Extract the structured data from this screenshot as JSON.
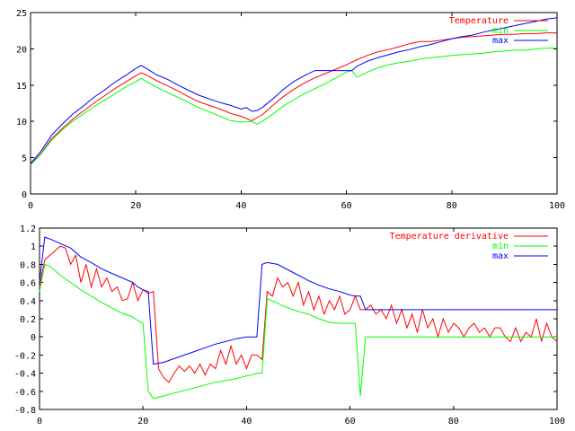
{
  "chart_data": [
    {
      "type": "line",
      "title": "",
      "xlabel": "",
      "ylabel": "",
      "xlim": [
        0,
        100
      ],
      "ylim": [
        0,
        25
      ],
      "xticks": [
        0,
        20,
        40,
        60,
        80,
        100
      ],
      "yticks": [
        0,
        5,
        10,
        15,
        20,
        25
      ],
      "grid": false,
      "legend": "top-right",
      "series": [
        {
          "name": "Temperature",
          "color": "#ff0000",
          "x": [
            0,
            2,
            4,
            6,
            8,
            10,
            12,
            14,
            16,
            18,
            20,
            21,
            22,
            24,
            26,
            28,
            30,
            32,
            34,
            36,
            38,
            40,
            42,
            44,
            46,
            48,
            50,
            52,
            54,
            56,
            58,
            60,
            62,
            64,
            66,
            68,
            70,
            72,
            74,
            76,
            78,
            80,
            82,
            84,
            86,
            88,
            90,
            92,
            94,
            96,
            98,
            100
          ],
          "y": [
            4.1,
            5.6,
            7.6,
            9.0,
            10.3,
            11.4,
            12.5,
            13.5,
            14.5,
            15.4,
            16.3,
            16.7,
            16.4,
            15.6,
            14.9,
            14.2,
            13.4,
            12.7,
            12.2,
            11.7,
            11.1,
            10.7,
            10.1,
            10.9,
            12.2,
            13.4,
            14.4,
            15.3,
            16.0,
            16.6,
            17.2,
            17.8,
            18.5,
            19.1,
            19.6,
            19.9,
            20.3,
            20.7,
            21.0,
            21.0,
            21.2,
            21.4,
            21.6,
            21.7,
            21.8,
            21.9,
            22.0,
            22.0,
            22.1,
            22.1,
            22.2,
            22.2
          ]
        },
        {
          "name": "min",
          "color": "#00ff00",
          "x": [
            0,
            2,
            4,
            6,
            8,
            10,
            12,
            14,
            16,
            18,
            20,
            21,
            22,
            24,
            26,
            28,
            30,
            32,
            34,
            36,
            38,
            40,
            42,
            43,
            44,
            46,
            48,
            50,
            52,
            54,
            56,
            58,
            60,
            61,
            62,
            64,
            66,
            68,
            70,
            72,
            74,
            76,
            78,
            80,
            82,
            84,
            86,
            88,
            90,
            92,
            94,
            96,
            98,
            100
          ],
          "y": [
            4.0,
            5.5,
            7.4,
            8.8,
            10.0,
            11.0,
            12.0,
            12.9,
            13.8,
            14.7,
            15.5,
            15.9,
            15.5,
            14.7,
            14.0,
            13.3,
            12.6,
            11.9,
            11.3,
            10.7,
            10.1,
            9.9,
            10.0,
            9.6,
            10.0,
            11.0,
            12.1,
            13.0,
            13.8,
            14.5,
            15.2,
            16.0,
            16.8,
            17.0,
            16.1,
            16.8,
            17.4,
            17.8,
            18.1,
            18.3,
            18.6,
            18.8,
            18.9,
            19.1,
            19.2,
            19.3,
            19.4,
            19.6,
            19.7,
            19.8,
            19.8,
            20.0,
            20.1,
            20.1
          ]
        },
        {
          "name": "max",
          "color": "#0000ff",
          "x": [
            0,
            2,
            4,
            6,
            8,
            10,
            12,
            14,
            16,
            18,
            20,
            21,
            22,
            24,
            26,
            28,
            30,
            32,
            34,
            36,
            38,
            40,
            41,
            42,
            43,
            44,
            46,
            48,
            50,
            52,
            54,
            56,
            58,
            60,
            61,
            62,
            64,
            66,
            68,
            70,
            72,
            74,
            76,
            78,
            80,
            82,
            84,
            86,
            88,
            90,
            92,
            94,
            96,
            98,
            100
          ],
          "y": [
            4.2,
            5.9,
            8.1,
            9.6,
            11.0,
            12.1,
            13.3,
            14.3,
            15.4,
            16.3,
            17.3,
            17.7,
            17.3,
            16.4,
            15.8,
            15.0,
            14.3,
            13.6,
            13.1,
            12.6,
            12.2,
            11.7,
            11.9,
            11.4,
            11.5,
            11.9,
            13.1,
            14.4,
            15.5,
            16.3,
            17.0,
            17.0,
            17.0,
            17.0,
            17.0,
            17.6,
            18.3,
            18.8,
            19.2,
            19.6,
            19.9,
            20.3,
            20.6,
            21.0,
            21.4,
            21.7,
            21.9,
            22.3,
            22.6,
            22.9,
            23.2,
            23.5,
            23.8,
            24.1,
            24.3
          ]
        }
      ]
    },
    {
      "type": "line",
      "title": "",
      "xlabel": "",
      "ylabel": "",
      "xlim": [
        0,
        100
      ],
      "ylim": [
        -0.8,
        1.2
      ],
      "xticks": [
        0,
        20,
        40,
        60,
        80,
        100
      ],
      "yticks": [
        -0.8,
        -0.6,
        -0.4,
        -0.2,
        0,
        0.2,
        0.4,
        0.6,
        0.8,
        1,
        1.2
      ],
      "grid": false,
      "legend": "top-right",
      "series": [
        {
          "name": "Temperature derivative",
          "color": "#ff0000",
          "x": [
            0,
            1,
            2,
            3,
            4,
            5,
            6,
            7,
            8,
            9,
            10,
            11,
            12,
            13,
            14,
            15,
            16,
            17,
            18,
            19,
            20,
            21,
            22,
            23,
            24,
            25,
            26,
            27,
            28,
            29,
            30,
            31,
            32,
            33,
            34,
            35,
            36,
            37,
            38,
            39,
            40,
            41,
            42,
            43,
            44,
            45,
            46,
            47,
            48,
            49,
            50,
            51,
            52,
            53,
            54,
            55,
            56,
            57,
            58,
            59,
            60,
            61,
            62,
            63,
            64,
            65,
            66,
            67,
            68,
            69,
            70,
            71,
            72,
            73,
            74,
            75,
            76,
            77,
            78,
            79,
            80,
            81,
            82,
            83,
            84,
            85,
            86,
            87,
            88,
            89,
            90,
            91,
            92,
            93,
            94,
            95,
            96,
            97,
            98,
            99,
            100
          ],
          "y": [
            0.55,
            0.85,
            0.9,
            0.95,
            1.0,
            0.98,
            0.8,
            0.9,
            0.6,
            0.8,
            0.55,
            0.75,
            0.55,
            0.65,
            0.5,
            0.55,
            0.4,
            0.42,
            0.6,
            0.4,
            0.52,
            0.48,
            0.5,
            -0.35,
            -0.45,
            -0.5,
            -0.4,
            -0.32,
            -0.38,
            -0.32,
            -0.4,
            -0.3,
            -0.42,
            -0.3,
            -0.35,
            -0.15,
            -0.3,
            -0.1,
            -0.3,
            -0.2,
            -0.35,
            -0.2,
            -0.2,
            -0.25,
            0.5,
            0.45,
            0.65,
            0.55,
            0.6,
            0.45,
            0.6,
            0.35,
            0.5,
            0.3,
            0.45,
            0.25,
            0.4,
            0.3,
            0.45,
            0.25,
            0.3,
            0.45,
            0.3,
            0.3,
            0.35,
            0.25,
            0.3,
            0.2,
            0.35,
            0.15,
            0.3,
            0.1,
            0.25,
            0.05,
            0.3,
            0.1,
            0.2,
            0.0,
            0.2,
            0.05,
            0.15,
            0.1,
            0.0,
            0.1,
            0.15,
            0.05,
            0.1,
            0.0,
            0.1,
            0.1,
            0.0,
            -0.05,
            0.1,
            -0.05,
            0.05,
            0.0,
            0.2,
            -0.05,
            0.15,
            0.0,
            -0.05
          ],
          "y_note": "",
          "step": 1
        },
        {
          "name": "min",
          "color": "#00ff00",
          "x": [
            0,
            1,
            2,
            4,
            6,
            8,
            10,
            12,
            14,
            16,
            18,
            19,
            20,
            21,
            22,
            24,
            26,
            28,
            30,
            32,
            34,
            36,
            38,
            40,
            41,
            42,
            43,
            44,
            46,
            48,
            50,
            52,
            54,
            56,
            58,
            60,
            61,
            62,
            63,
            64,
            66,
            68,
            70,
            72,
            74,
            76,
            78,
            80,
            82,
            84,
            86,
            88,
            90,
            92,
            94,
            96,
            98,
            100
          ],
          "y": [
            0.5,
            0.8,
            0.78,
            0.68,
            0.6,
            0.52,
            0.45,
            0.38,
            0.32,
            0.26,
            0.22,
            0.18,
            0.15,
            -0.6,
            -0.68,
            -0.65,
            -0.62,
            -0.59,
            -0.56,
            -0.53,
            -0.5,
            -0.48,
            -0.46,
            -0.43,
            -0.42,
            -0.4,
            -0.4,
            0.42,
            0.37,
            0.32,
            0.28,
            0.25,
            0.2,
            0.16,
            0.15,
            0.15,
            0.15,
            -0.65,
            0.0,
            0.0,
            0.0,
            0.0,
            0.0,
            0.0,
            0.0,
            0.0,
            0.0,
            0.0,
            0.0,
            0.0,
            0.0,
            0.0,
            0.0,
            0.0,
            0.0,
            0.0,
            0.0,
            0.0
          ]
        },
        {
          "name": "max",
          "color": "#0000ff",
          "x": [
            0,
            1,
            2,
            4,
            6,
            8,
            10,
            12,
            14,
            16,
            18,
            19,
            20,
            21,
            22,
            24,
            26,
            28,
            30,
            32,
            34,
            36,
            38,
            40,
            41,
            42,
            43,
            44,
            46,
            48,
            50,
            52,
            54,
            56,
            58,
            60,
            61,
            62,
            63,
            64,
            66,
            68,
            70,
            72,
            74,
            76,
            78,
            80,
            82,
            84,
            86,
            88,
            90,
            92,
            94,
            96,
            98,
            100
          ],
          "y": [
            0.6,
            1.1,
            1.08,
            1.03,
            0.98,
            0.88,
            0.82,
            0.75,
            0.7,
            0.65,
            0.6,
            0.55,
            0.52,
            0.5,
            -0.3,
            -0.28,
            -0.24,
            -0.2,
            -0.16,
            -0.12,
            -0.08,
            -0.05,
            -0.02,
            0.0,
            0.0,
            0.0,
            0.8,
            0.82,
            0.8,
            0.74,
            0.68,
            0.62,
            0.57,
            0.53,
            0.5,
            0.46,
            0.45,
            0.45,
            0.3,
            0.3,
            0.3,
            0.3,
            0.3,
            0.3,
            0.3,
            0.3,
            0.3,
            0.3,
            0.3,
            0.3,
            0.3,
            0.3,
            0.3,
            0.3,
            0.3,
            0.3,
            0.3,
            0.3
          ]
        }
      ]
    }
  ]
}
